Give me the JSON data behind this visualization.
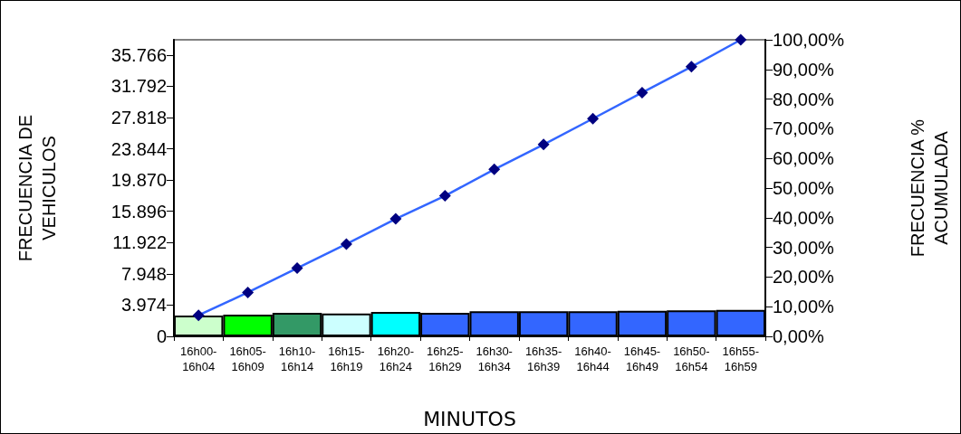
{
  "chart_data": {
    "type": "bar",
    "xlabel": "MINUTOS",
    "ylabel": "FRECUENCIA DE VEHICULOS",
    "y2label": "FRECUENCIA % ACUMULADA",
    "categories": [
      "16h00-16h04",
      "16h05-16h09",
      "16h10-16h14",
      "16h15-16h19",
      "16h20-16h24",
      "16h25-16h29",
      "16h30-16h34",
      "16h35-16h39",
      "16h40-16h44",
      "16h45-16h49",
      "16h50-16h54",
      "16h55-16h59"
    ],
    "series": [
      {
        "colors": [
          "#ccffcc",
          "#00ff00",
          "#339966",
          "#ccffff",
          "#00ffff",
          "#3366ff",
          "#3366ff",
          "#3366ff",
          "#3366ff",
          "#3366ff",
          "#3366ff",
          "#3366ff"
        ],
        "values": [
          2650,
          2750,
          3000,
          2900,
          3100,
          3000,
          3200,
          3200,
          3200,
          3250,
          3300,
          3350
        ]
      },
      {
        "type": "line",
        "axis": "y2",
        "color": "#3366ff",
        "marker": "diamond",
        "values": [
          7.1,
          14.8,
          23.0,
          31.1,
          39.6,
          47.4,
          56.3,
          64.7,
          73.4,
          82.2,
          90.9,
          100
        ]
      }
    ],
    "ylim": [
      0,
      37700
    ],
    "yticks": [
      {
        "value": 0,
        "label": "0"
      },
      {
        "value": 3974,
        "label": "3.974"
      },
      {
        "value": 7948,
        "label": "7.948"
      },
      {
        "value": 11922,
        "label": "11.922"
      },
      {
        "value": 15896,
        "label": "15.896"
      },
      {
        "value": 19870,
        "label": "19.870"
      },
      {
        "value": 23844,
        "label": "23.844"
      },
      {
        "value": 27818,
        "label": "27.818"
      },
      {
        "value": 31792,
        "label": "31.792"
      },
      {
        "value": 35766,
        "label": "35.766"
      }
    ],
    "y2lim": [
      0,
      100
    ],
    "y2ticks": [
      {
        "value": 0,
        "label": "0,00%"
      },
      {
        "value": 10,
        "label": "10,00%"
      },
      {
        "value": 20,
        "label": "20,00%"
      },
      {
        "value": 30,
        "label": "30,00%"
      },
      {
        "value": 40,
        "label": "40,00%"
      },
      {
        "value": 50,
        "label": "50,00%"
      },
      {
        "value": 60,
        "label": "60,00%"
      },
      {
        "value": 70,
        "label": "70,00%"
      },
      {
        "value": 80,
        "label": "80,00%"
      },
      {
        "value": 90,
        "label": "90,00%"
      },
      {
        "value": 100,
        "label": "100,00%"
      }
    ],
    "grid": false
  }
}
